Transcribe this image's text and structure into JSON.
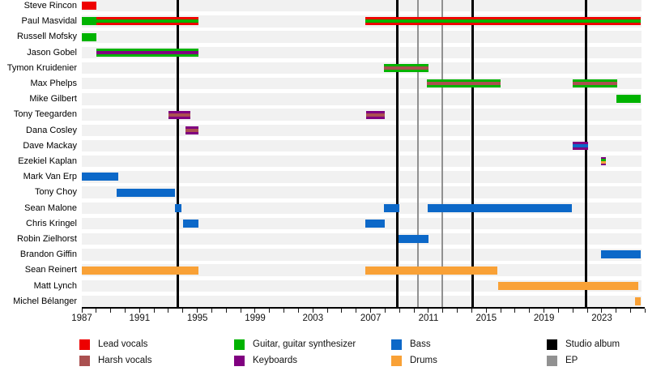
{
  "colors": {
    "lead_vocals": "#ee0000",
    "harsh_vocals": "#aa5050",
    "guitar": "#00b300",
    "keyboards": "#800080",
    "bass": "#0c68c8",
    "drums": "#f9a136",
    "studio_album": "#000000",
    "ep": "#919191",
    "row_band": "#f1f1f1",
    "axis": "#000000"
  },
  "chart_data": {
    "type": "bar",
    "subtype": "member-timeline-gantt",
    "title": "",
    "x_axis": {
      "start_year": 1987,
      "end_year": 2026,
      "tick_step": 1,
      "label_step": 4,
      "labels": [
        "1987",
        "1991",
        "1995",
        "1999",
        "2003",
        "2007",
        "2011",
        "2015",
        "2019",
        "2023"
      ]
    },
    "members": [
      {
        "name": "Steve Rincon",
        "bars": [
          {
            "start": 1987.0,
            "end": 1988.0,
            "role": "lead_vocals",
            "stripes": []
          }
        ]
      },
      {
        "name": "Paul Masvidal",
        "bars": [
          {
            "start": 1987.0,
            "end": 1988.0,
            "role": "guitar",
            "stripes": []
          },
          {
            "start": 1988.0,
            "end": 1995.05,
            "role": "lead_vocals",
            "stripes": [
              "guitar"
            ]
          },
          {
            "start": 2006.6,
            "end": 2025.7,
            "role": "lead_vocals",
            "stripes": [
              "guitar"
            ]
          }
        ]
      },
      {
        "name": "Russell Mofsky",
        "bars": [
          {
            "start": 1987.0,
            "end": 1988.0,
            "role": "guitar",
            "stripes": []
          }
        ]
      },
      {
        "name": "Jason Gobel",
        "bars": [
          {
            "start": 1988.0,
            "end": 1995.05,
            "role": "guitar",
            "stripes": [
              "keyboards"
            ]
          }
        ]
      },
      {
        "name": "Tymon Kruidenier",
        "bars": [
          {
            "start": 2007.9,
            "end": 2011.0,
            "role": "guitar",
            "stripes": [
              "harsh_vocals"
            ]
          }
        ]
      },
      {
        "name": "Max Phelps",
        "bars": [
          {
            "start": 2010.9,
            "end": 2016.0,
            "role": "guitar",
            "stripes": [
              "harsh_vocals"
            ]
          },
          {
            "start": 2021.0,
            "end": 2024.05,
            "role": "guitar",
            "stripes": [
              "harsh_vocals"
            ]
          }
        ]
      },
      {
        "name": "Mike Gilbert",
        "bars": [
          {
            "start": 2024.0,
            "end": 2025.7,
            "role": "guitar",
            "stripes": []
          }
        ]
      },
      {
        "name": "Tony Teegarden",
        "bars": [
          {
            "start": 1993.0,
            "end": 1994.5,
            "role": "keyboards",
            "stripes": [
              "harsh_vocals"
            ]
          },
          {
            "start": 2006.7,
            "end": 2008.0,
            "role": "keyboards",
            "stripes": [
              "harsh_vocals"
            ]
          }
        ]
      },
      {
        "name": "Dana Cosley",
        "bars": [
          {
            "start": 1994.2,
            "end": 1995.05,
            "role": "keyboards",
            "stripes": [
              "harsh_vocals"
            ]
          }
        ]
      },
      {
        "name": "Dave Mackay",
        "bars": [
          {
            "start": 2021.0,
            "end": 2022.05,
            "role": "keyboards",
            "stripes": [
              "bass"
            ]
          }
        ]
      },
      {
        "name": "Ezekiel Kaplan",
        "bars": [
          {
            "start": 2022.95,
            "end": 2023.3,
            "role": "keyboards",
            "stripes": [
              "guitar",
              "drums"
            ]
          }
        ]
      },
      {
        "name": "Mark Van Erp",
        "bars": [
          {
            "start": 1987.0,
            "end": 1989.5,
            "role": "bass",
            "stripes": []
          }
        ]
      },
      {
        "name": "Tony Choy",
        "bars": [
          {
            "start": 1989.4,
            "end": 1993.45,
            "role": "bass",
            "stripes": []
          }
        ]
      },
      {
        "name": "Sean Malone",
        "bars": [
          {
            "start": 1993.45,
            "end": 1993.9,
            "role": "bass",
            "stripes": []
          },
          {
            "start": 2007.9,
            "end": 2009.0,
            "role": "bass",
            "stripes": []
          },
          {
            "start": 2010.95,
            "end": 2020.9,
            "role": "bass",
            "stripes": []
          }
        ]
      },
      {
        "name": "Chris Kringel",
        "bars": [
          {
            "start": 1994.0,
            "end": 1995.05,
            "role": "bass",
            "stripes": []
          },
          {
            "start": 2006.6,
            "end": 2008.0,
            "role": "bass",
            "stripes": []
          }
        ]
      },
      {
        "name": "Robin Zielhorst",
        "bars": [
          {
            "start": 2008.9,
            "end": 2011.0,
            "role": "bass",
            "stripes": []
          }
        ]
      },
      {
        "name": "Brandon Giffin",
        "bars": [
          {
            "start": 2022.95,
            "end": 2025.7,
            "role": "bass",
            "stripes": []
          }
        ]
      },
      {
        "name": "Sean Reinert",
        "bars": [
          {
            "start": 1987.0,
            "end": 1995.05,
            "role": "drums",
            "stripes": []
          },
          {
            "start": 2006.6,
            "end": 2015.75,
            "role": "drums",
            "stripes": []
          }
        ]
      },
      {
        "name": "Matt Lynch",
        "bars": [
          {
            "start": 2015.85,
            "end": 2025.5,
            "role": "drums",
            "stripes": []
          }
        ]
      },
      {
        "name": "Michel Bélanger",
        "bars": [
          {
            "start": 2025.3,
            "end": 2025.7,
            "role": "drums",
            "stripes": []
          }
        ]
      }
    ],
    "releases": [
      {
        "year": 1993.67,
        "type": "studio_album"
      },
      {
        "year": 2008.82,
        "type": "studio_album"
      },
      {
        "year": 2010.28,
        "type": "ep"
      },
      {
        "year": 2011.95,
        "type": "ep"
      },
      {
        "year": 2014.08,
        "type": "studio_album"
      },
      {
        "year": 2021.9,
        "type": "studio_album"
      }
    ],
    "legend_columns": [
      [
        {
          "label": "Lead vocals",
          "role": "lead_vocals"
        },
        {
          "label": "Harsh vocals",
          "role": "harsh_vocals"
        }
      ],
      [
        {
          "label": "Guitar, guitar synthesizer",
          "role": "guitar"
        },
        {
          "label": "Keyboards",
          "role": "keyboards"
        }
      ],
      [
        {
          "label": "Bass",
          "role": "bass"
        },
        {
          "label": "Drums",
          "role": "drums"
        }
      ],
      [
        {
          "label": "Studio album",
          "role": "studio_album"
        },
        {
          "label": "EP",
          "role": "ep"
        }
      ]
    ]
  }
}
